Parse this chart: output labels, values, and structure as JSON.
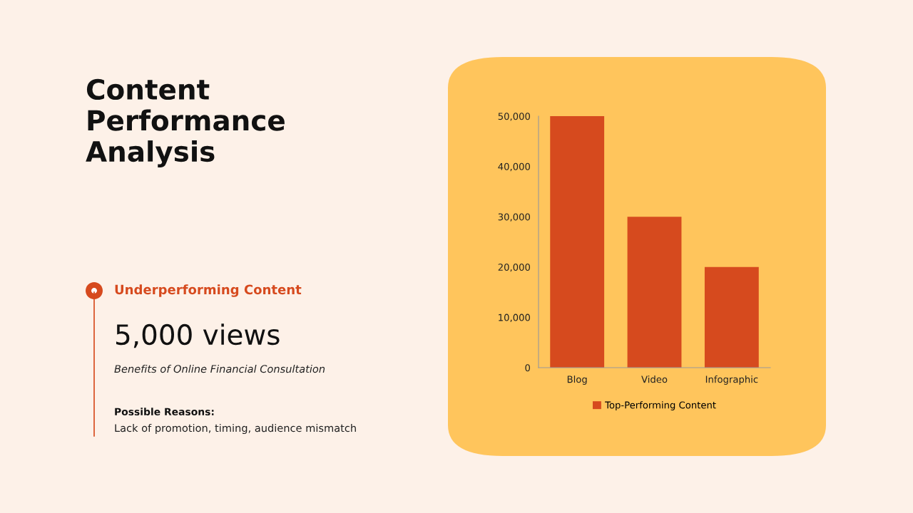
{
  "chart_data": {
    "type": "bar",
    "title": "Content Performance Analysis",
    "categories": [
      "Blog",
      "Video",
      "Infographic"
    ],
    "series": [
      {
        "name": "Top-Performing Content",
        "color": "#d64a1e",
        "values": [
          50000,
          30000,
          20000
        ]
      }
    ],
    "ylim": [
      0,
      50000
    ],
    "yticks": [
      0,
      {
        "value": 10000,
        "label": "10,000"
      },
      {
        "value": 20000,
        "label": "20,000"
      },
      {
        "value": 30000,
        "label": "30,000"
      },
      {
        "value": 40000,
        "label": "40,000"
      },
      {
        "value": 50000,
        "label": "50,000"
      }
    ],
    "grid": false,
    "legend": "bottom",
    "annotations": [
      "Underperforming Content",
      "5,000 views",
      "Benefits of Online Financial Consultation",
      "Possible Reasons:",
      "Lack of promotion, timing, audience mismatch"
    ]
  }
}
